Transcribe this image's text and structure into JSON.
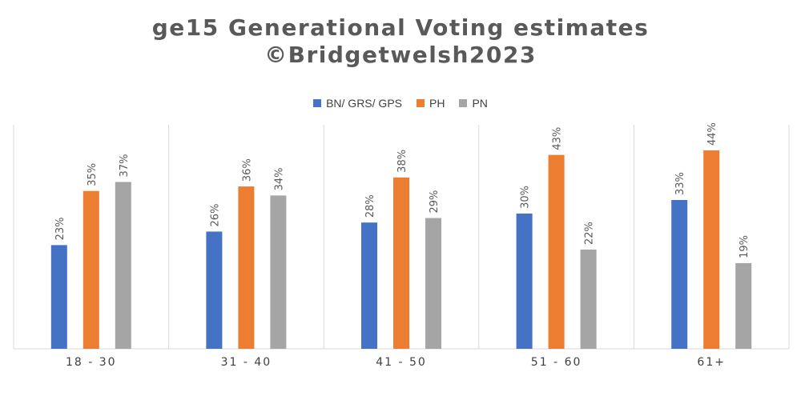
{
  "chart_data": {
    "type": "bar",
    "title": "ge15 Generational Voting estimates",
    "subtitle": "©Bridgetwelsh2023",
    "xlabel": "",
    "ylabel": "",
    "ylim": [
      0,
      50
    ],
    "grid": "vertical category separators",
    "legend_position": "top",
    "categories": [
      "18 - 30",
      "31 - 40",
      "41 - 50",
      "51 - 60",
      "61+"
    ],
    "series": [
      {
        "name": "BN/ GRS/ GPS",
        "color": "#4472C4",
        "values": [
          23,
          26,
          28,
          30,
          33
        ],
        "labels": [
          "23%",
          "26%",
          "28%",
          "30%",
          "33%"
        ]
      },
      {
        "name": "PH",
        "color": "#ED7D31",
        "values": [
          35,
          36,
          38,
          43,
          44
        ],
        "labels": [
          "35%",
          "36%",
          "38%",
          "43%",
          "44%"
        ]
      },
      {
        "name": "PN",
        "color": "#A5A5A5",
        "values": [
          37,
          34,
          29,
          22,
          19
        ],
        "labels": [
          "37%",
          "34%",
          "29%",
          "22%",
          "19%"
        ]
      }
    ]
  }
}
